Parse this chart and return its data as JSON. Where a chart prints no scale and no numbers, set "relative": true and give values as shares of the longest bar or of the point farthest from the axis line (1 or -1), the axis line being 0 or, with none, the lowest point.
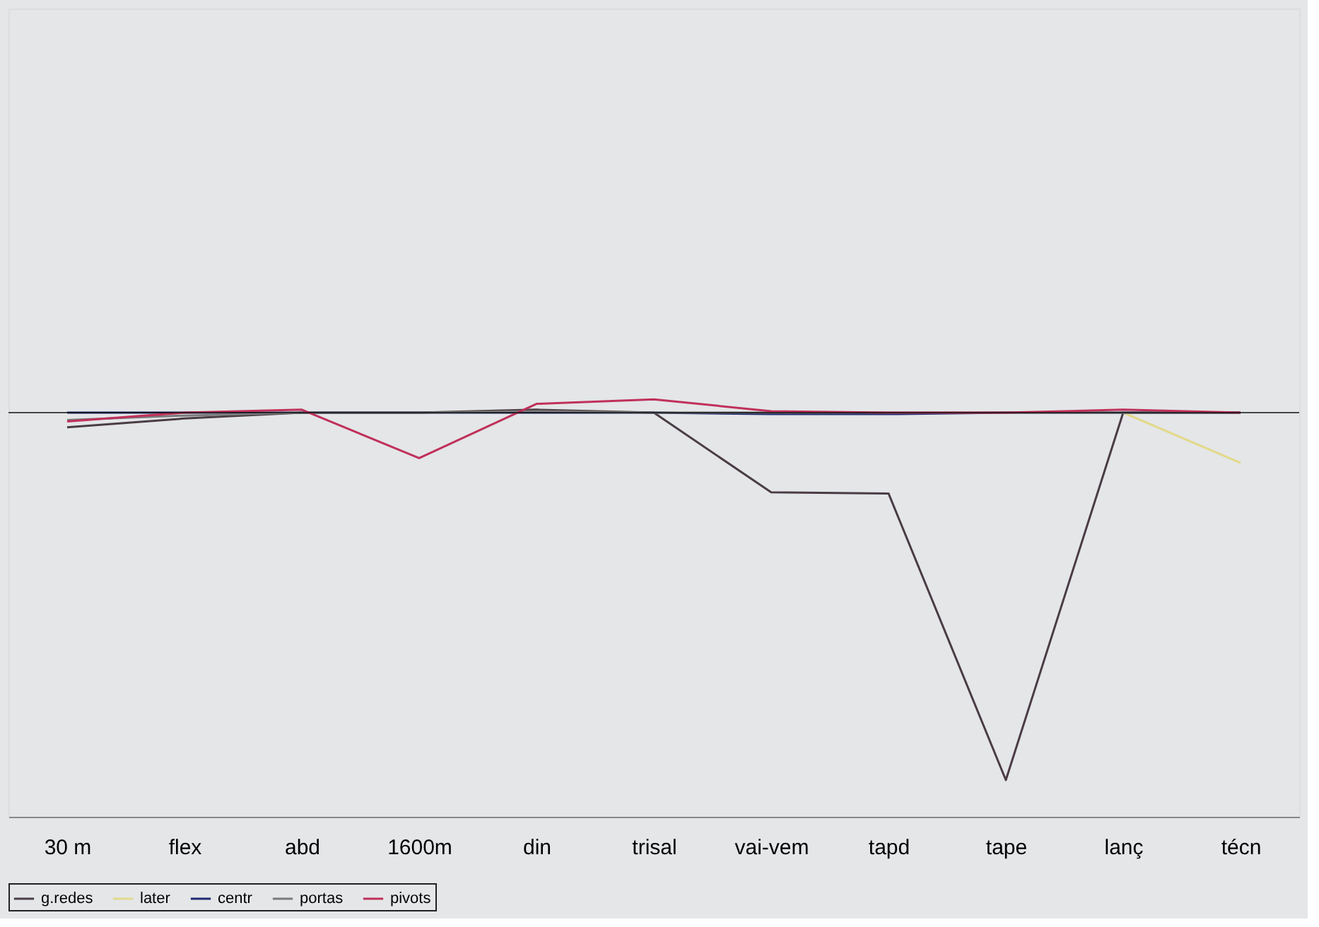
{
  "chart_data": {
    "type": "line",
    "relative": true,
    "categories": [
      "30 m",
      "flex",
      "abd",
      "1600m",
      "din",
      "trisal",
      "vai-vem",
      "tapd",
      "tape",
      "lanç",
      "técn"
    ],
    "series": [
      {
        "name": "g.redes",
        "color": "#4a3c44",
        "values": [
          -0.04,
          -0.016,
          0,
          0,
          0.008,
          0,
          -0.217,
          -0.22,
          -1,
          0,
          0
        ]
      },
      {
        "name": "later",
        "color": "#e3d98a",
        "values": [
          null,
          null,
          null,
          null,
          null,
          null,
          null,
          null,
          null,
          0,
          -0.137
        ]
      },
      {
        "name": "centr",
        "color": "#1f2a6e",
        "values": [
          0,
          0,
          0,
          0,
          0,
          0,
          -0.004,
          -0.004,
          0,
          0,
          0
        ]
      },
      {
        "name": "portas",
        "color": "#7a7a7a",
        "values": [
          -0.02,
          -0.008,
          0,
          0,
          0.004,
          0,
          0,
          0,
          0,
          0,
          0
        ]
      },
      {
        "name": "pivots",
        "color": "#c0305a",
        "values": [
          -0.024,
          0,
          0.008,
          -0.124,
          0.024,
          0.036,
          0.004,
          0,
          0,
          0.008,
          0
        ]
      }
    ],
    "legend": "bottom",
    "marker": "none",
    "line_style": "solid",
    "grid": false
  }
}
